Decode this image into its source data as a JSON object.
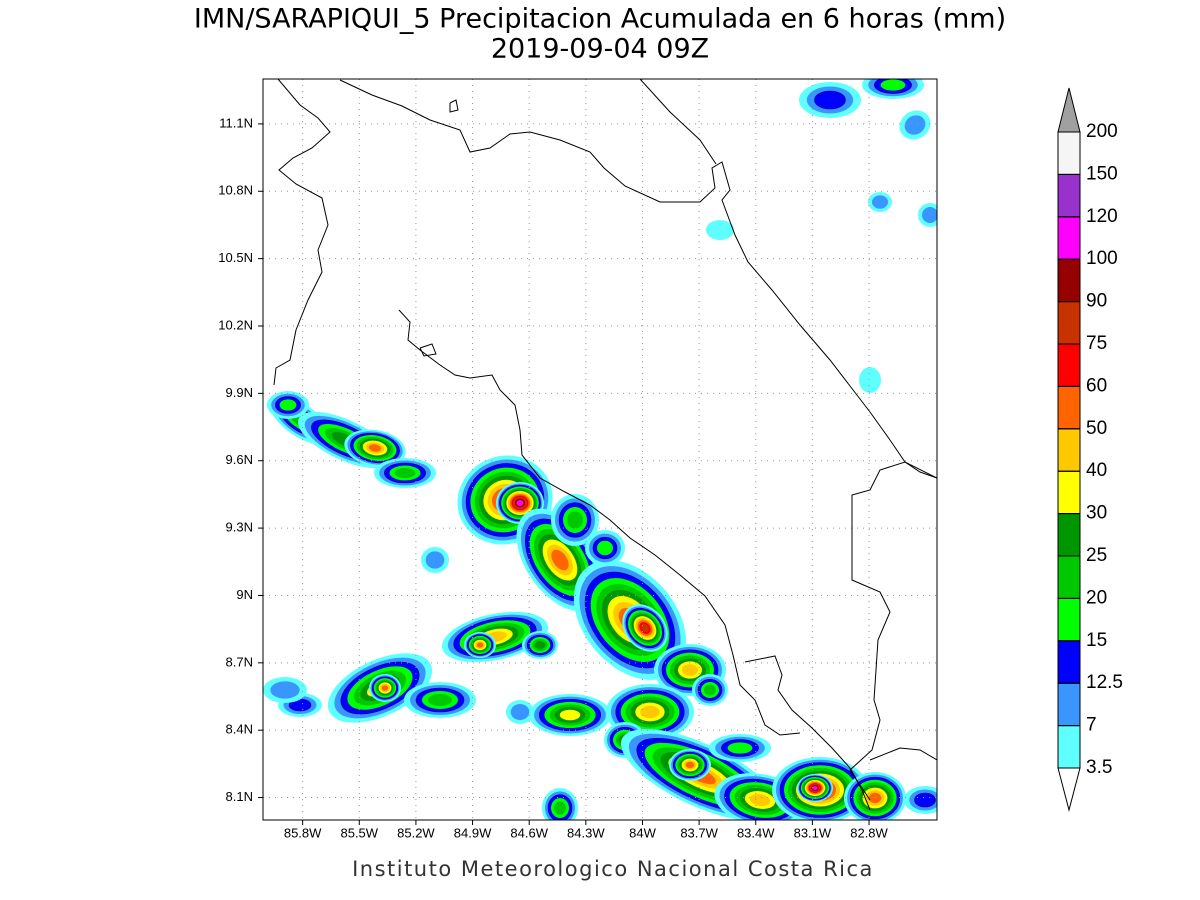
{
  "map_data": {
    "title": "IMN/SARAPIQUI_5 Precipitacion Acumulada en 6 horas (mm)",
    "subtitle": "2019-09-04 09Z",
    "credit": "Instituto Meteorologico Nacional Costa Rica",
    "xlim": [
      -86.01,
      -82.44
    ],
    "ylim": [
      8.0,
      11.3
    ],
    "xticks": [
      {
        "value": -85.8,
        "label": "85.8W"
      },
      {
        "value": -85.5,
        "label": "85.5W"
      },
      {
        "value": -85.2,
        "label": "85.2W"
      },
      {
        "value": -84.9,
        "label": "84.9W"
      },
      {
        "value": -84.6,
        "label": "84.6W"
      },
      {
        "value": -84.3,
        "label": "84.3W"
      },
      {
        "value": -84,
        "label": "84W"
      },
      {
        "value": -83.7,
        "label": "83.7W"
      },
      {
        "value": -83.4,
        "label": "83.4W"
      },
      {
        "value": -83.1,
        "label": "83.1W"
      },
      {
        "value": -82.8,
        "label": "82.8W"
      }
    ],
    "yticks": [
      {
        "value": 8.1,
        "label": "8.1N"
      },
      {
        "value": 8.4,
        "label": "8.4N"
      },
      {
        "value": 8.7,
        "label": "8.7N"
      },
      {
        "value": 9,
        "label": "9N"
      },
      {
        "value": 9.3,
        "label": "9.3N"
      },
      {
        "value": 9.6,
        "label": "9.6N"
      },
      {
        "value": 9.9,
        "label": "9.9N"
      },
      {
        "value": 10.2,
        "label": "10.2N"
      },
      {
        "value": 10.5,
        "label": "10.5N"
      },
      {
        "value": 10.8,
        "label": "10.8N"
      },
      {
        "value": 11.1,
        "label": "11.1N"
      }
    ],
    "grid": true,
    "colorbar": {
      "levels": [
        3.5,
        7,
        12.5,
        15,
        20,
        25,
        30,
        40,
        50,
        60,
        75,
        90,
        100,
        120,
        150,
        200
      ],
      "colors": [
        "#60ffff",
        "#3a96ff",
        "#0000ff",
        "#00ff00",
        "#00c800",
        "#009600",
        "#ffff00",
        "#ffc800",
        "#ff6400",
        "#ff0000",
        "#c83200",
        "#960000",
        "#ff00ff",
        "#9932cc",
        "#f5f5f5"
      ],
      "under_color": "#ffffff",
      "over_color": "#a0a0a0"
    }
  }
}
